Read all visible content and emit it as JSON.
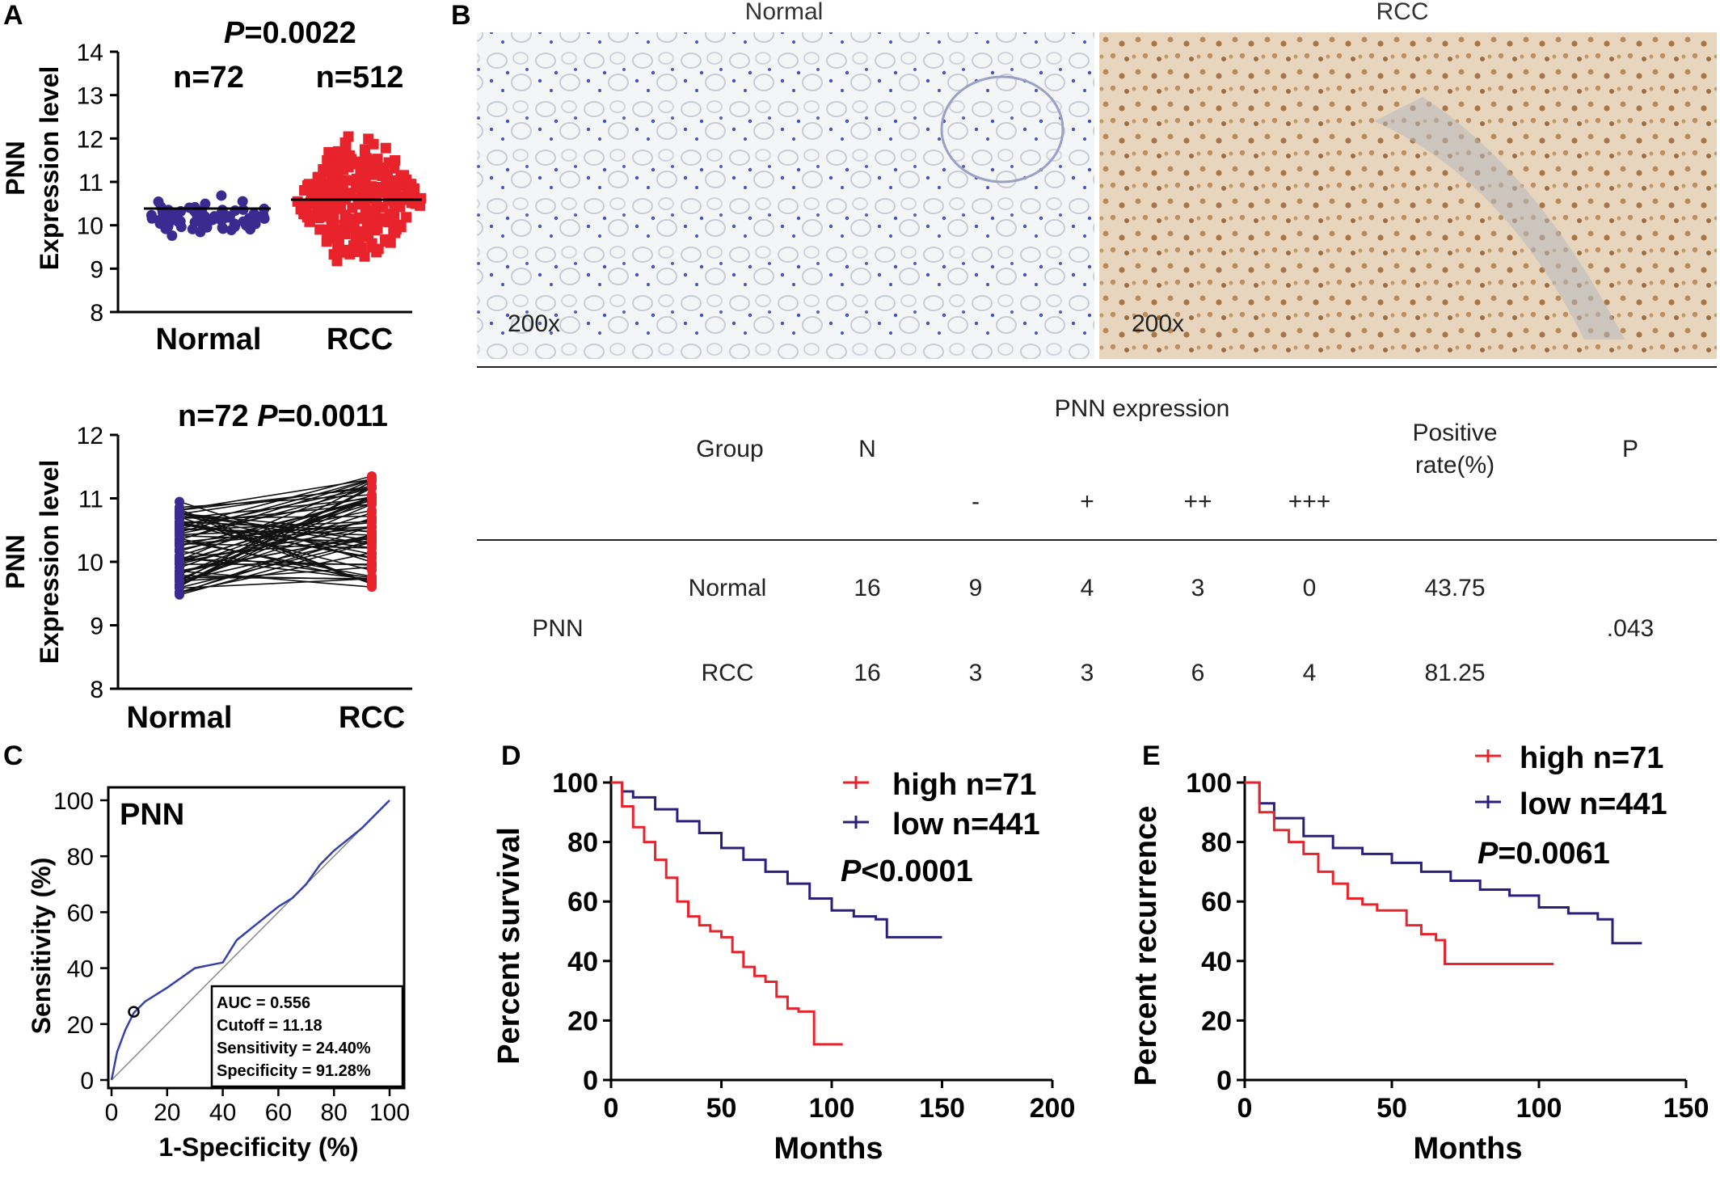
{
  "panels": {
    "A": {
      "letter": "A",
      "top": {
        "pvalue_prefix": "P",
        "pvalue": "=0.0022",
        "n_normal": "n=72",
        "n_rcc": "n=512",
        "ylabel_1": "PNN",
        "ylabel_2": "Expression level",
        "yticks": [
          "8",
          "9",
          "10",
          "11",
          "12",
          "13",
          "14"
        ],
        "xlabels": [
          "Normal",
          "RCC"
        ]
      },
      "bottom": {
        "title_n": "n=72 ",
        "pvalue_prefix": "P",
        "pvalue": "=0.0011",
        "ylabel_1": "PNN",
        "ylabel_2": "Expression level",
        "yticks": [
          "8",
          "9",
          "10",
          "11",
          "12"
        ],
        "xlabels": [
          "Normal",
          "RCC"
        ]
      }
    },
    "B": {
      "letter": "B",
      "images": [
        {
          "title": "Normal",
          "magnification": "200x"
        },
        {
          "title": "RCC",
          "magnification": "200x"
        }
      ],
      "table": {
        "headers": {
          "group": "Group",
          "n": "N",
          "expression": "PNN expression",
          "levels": [
            "-",
            "+",
            "++",
            "+++"
          ],
          "positive_1": "Positive",
          "positive_2": "rate(%)",
          "p": "P"
        },
        "row_label": "PNN",
        "rows": [
          {
            "group": "Normal",
            "n": "16",
            "neg": "9",
            "p1": "4",
            "p2": "3",
            "p3": "0",
            "rate": "43.75"
          },
          {
            "group": "RCC",
            "n": "16",
            "neg": "3",
            "p1": "3",
            "p2": "6",
            "p3": "4",
            "rate": "81.25"
          }
        ],
        "p_value": ".043"
      }
    },
    "C": {
      "letter": "C",
      "inner_label": "PNN",
      "xlabel": "1-Specificity (%)",
      "ylabel": "Sensitivity (%)",
      "ticks": [
        "0",
        "20",
        "40",
        "60",
        "80",
        "100"
      ],
      "stats": [
        "AUC = 0.556",
        "Cutoff = 11.18",
        "Sensitivity = 24.40%",
        "Specificity = 91.28%"
      ]
    },
    "D": {
      "letter": "D",
      "legend_high": "high n=71",
      "legend_low": "low n=441",
      "pvalue_prefix": "P",
      "pvalue": "<0.0001",
      "ylabel": "Percent survival",
      "xlabel": "Months",
      "yticks": [
        "0",
        "20",
        "40",
        "60",
        "80",
        "100"
      ],
      "xticks": [
        "0",
        "50",
        "100",
        "150",
        "200"
      ]
    },
    "E": {
      "letter": "E",
      "legend_high": "high n=71",
      "legend_low": "low n=441",
      "pvalue_prefix": "P",
      "pvalue": "=0.0061",
      "ylabel": "Percent recurrence",
      "xlabel": "Months",
      "yticks": [
        "0",
        "20",
        "40",
        "60",
        "80",
        "100"
      ],
      "xticks": [
        "0",
        "50",
        "100",
        "150"
      ]
    }
  },
  "colors": {
    "normal": "#3b2a8f",
    "rcc": "#e8232b",
    "high": "#e8232b",
    "low": "#2a1f7a"
  },
  "chart_data": [
    {
      "type": "scatter",
      "panel": "A-top",
      "categories": [
        "Normal",
        "RCC"
      ],
      "series": [
        {
          "name": "Normal",
          "n": 72,
          "median": 10.3,
          "range": [
            9.5,
            10.9
          ]
        },
        {
          "name": "RCC",
          "n": 512,
          "median": 10.55,
          "range": [
            8.9,
            12.4
          ]
        }
      ],
      "ylim": [
        8,
        14
      ]
    },
    {
      "type": "line",
      "panel": "A-bottom",
      "categories": [
        "Normal",
        "RCC"
      ],
      "normal_range": [
        9.45,
        10.95
      ],
      "rcc_range": [
        9.6,
        11.4
      ],
      "ylim": [
        8,
        12
      ]
    },
    {
      "type": "line",
      "panel": "C",
      "series": [
        {
          "name": "PNN",
          "x": [
            0,
            2,
            5,
            8,
            12,
            20,
            30,
            40,
            45,
            50,
            55,
            60,
            65,
            70,
            75,
            80,
            85,
            90,
            95,
            100
          ],
          "y": [
            0,
            10,
            18,
            24,
            28,
            33,
            40,
            42,
            50,
            54,
            58,
            62,
            65,
            70,
            77,
            82,
            86,
            90,
            95,
            100
          ]
        }
      ],
      "cutoff_point": [
        8,
        24.4
      ],
      "xlim": [
        0,
        100
      ],
      "ylim": [
        0,
        100
      ]
    },
    {
      "type": "line",
      "panel": "D",
      "series": [
        {
          "name": "high n=71",
          "x": [
            0,
            5,
            10,
            15,
            20,
            25,
            30,
            35,
            40,
            45,
            50,
            55,
            60,
            65,
            70,
            75,
            80,
            85,
            90,
            92,
            95,
            100,
            105
          ],
          "y": [
            100,
            92,
            85,
            80,
            74,
            68,
            60,
            55,
            52,
            50,
            48,
            43,
            38,
            35,
            33,
            28,
            24,
            23,
            23,
            12,
            12,
            12,
            12
          ]
        },
        {
          "name": "low n=441",
          "x": [
            0,
            5,
            10,
            20,
            30,
            40,
            50,
            60,
            70,
            80,
            90,
            100,
            110,
            120,
            125,
            130,
            140,
            150
          ],
          "y": [
            100,
            97,
            95,
            91,
            87,
            83,
            78,
            74,
            70,
            66,
            61,
            57,
            55,
            54,
            48,
            48,
            48,
            48
          ]
        }
      ],
      "xlim": [
        0,
        200
      ],
      "ylim": [
        0,
        100
      ]
    },
    {
      "type": "line",
      "panel": "E",
      "series": [
        {
          "name": "high n=71",
          "x": [
            0,
            5,
            10,
            15,
            20,
            25,
            30,
            35,
            40,
            45,
            50,
            55,
            60,
            65,
            68,
            70,
            80,
            90,
            100,
            105
          ],
          "y": [
            100,
            90,
            84,
            80,
            76,
            70,
            66,
            61,
            59,
            57,
            57,
            52,
            49,
            47,
            39,
            39,
            39,
            39,
            39,
            39
          ]
        },
        {
          "name": "low n=441",
          "x": [
            0,
            5,
            10,
            20,
            30,
            40,
            50,
            60,
            70,
            80,
            90,
            100,
            110,
            120,
            125,
            130,
            135
          ],
          "y": [
            100,
            93,
            88,
            82,
            78,
            76,
            73,
            70,
            67,
            64,
            62,
            58,
            56,
            54,
            46,
            46,
            46
          ]
        }
      ],
      "xlim": [
        0,
        150
      ],
      "ylim": [
        0,
        100
      ]
    }
  ]
}
